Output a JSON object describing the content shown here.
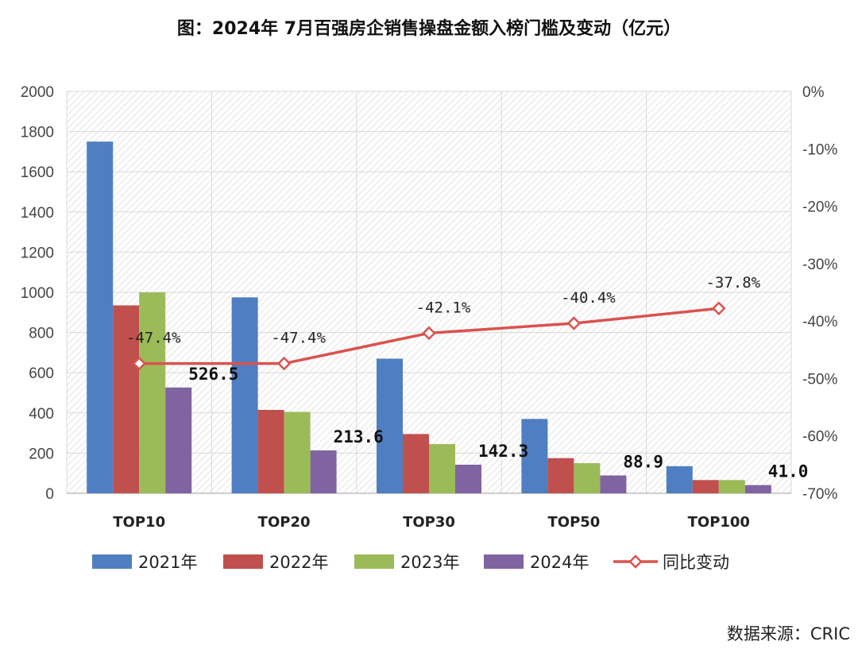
{
  "title": "图：2024年 7月百强房企销售操盘金额入榜门槛及变动（亿元）",
  "source": "数据来源：CRIC",
  "colors": {
    "series_2021": "#4f7ec2",
    "series_2022": "#c0504d",
    "series_2023": "#9bbb59",
    "series_2024": "#8064a2",
    "line": "#d9534f",
    "grid": "#d9d9d9"
  },
  "chart_data": {
    "type": "bar",
    "categories": [
      "TOP10",
      "TOP20",
      "TOP30",
      "TOP50",
      "TOP100"
    ],
    "series": [
      {
        "name": "2021年",
        "values": [
          1750,
          975,
          670,
          370,
          135
        ]
      },
      {
        "name": "2022年",
        "values": [
          935,
          415,
          295,
          175,
          66
        ]
      },
      {
        "name": "2023年",
        "values": [
          1000,
          405,
          245,
          150,
          66
        ]
      },
      {
        "name": "2024年",
        "values": [
          526.5,
          213.6,
          142.3,
          88.9,
          41.0
        ]
      }
    ],
    "bar_labels": [
      "526.5",
      "213.6",
      "142.3",
      "88.9",
      "41.0"
    ],
    "line_series": {
      "name": "同比变动",
      "type": "line",
      "axis": "right",
      "values": [
        -47.4,
        -47.4,
        -42.1,
        -40.4,
        -37.8
      ],
      "labels": [
        "-47.4%",
        "-47.4%",
        "-42.1%",
        "-40.4%",
        "-37.8%"
      ]
    },
    "y_left": {
      "min": 0,
      "max": 2000,
      "ticks": [
        "0",
        "200",
        "400",
        "600",
        "800",
        "1000",
        "1200",
        "1400",
        "1600",
        "1800",
        "2000"
      ]
    },
    "y_right": {
      "min": -70,
      "max": 0,
      "ticks": [
        "-70%",
        "-60%",
        "-50%",
        "-40%",
        "-30%",
        "-20%",
        "-10%",
        "0%"
      ]
    },
    "grid": true,
    "legend_position": "bottom"
  }
}
